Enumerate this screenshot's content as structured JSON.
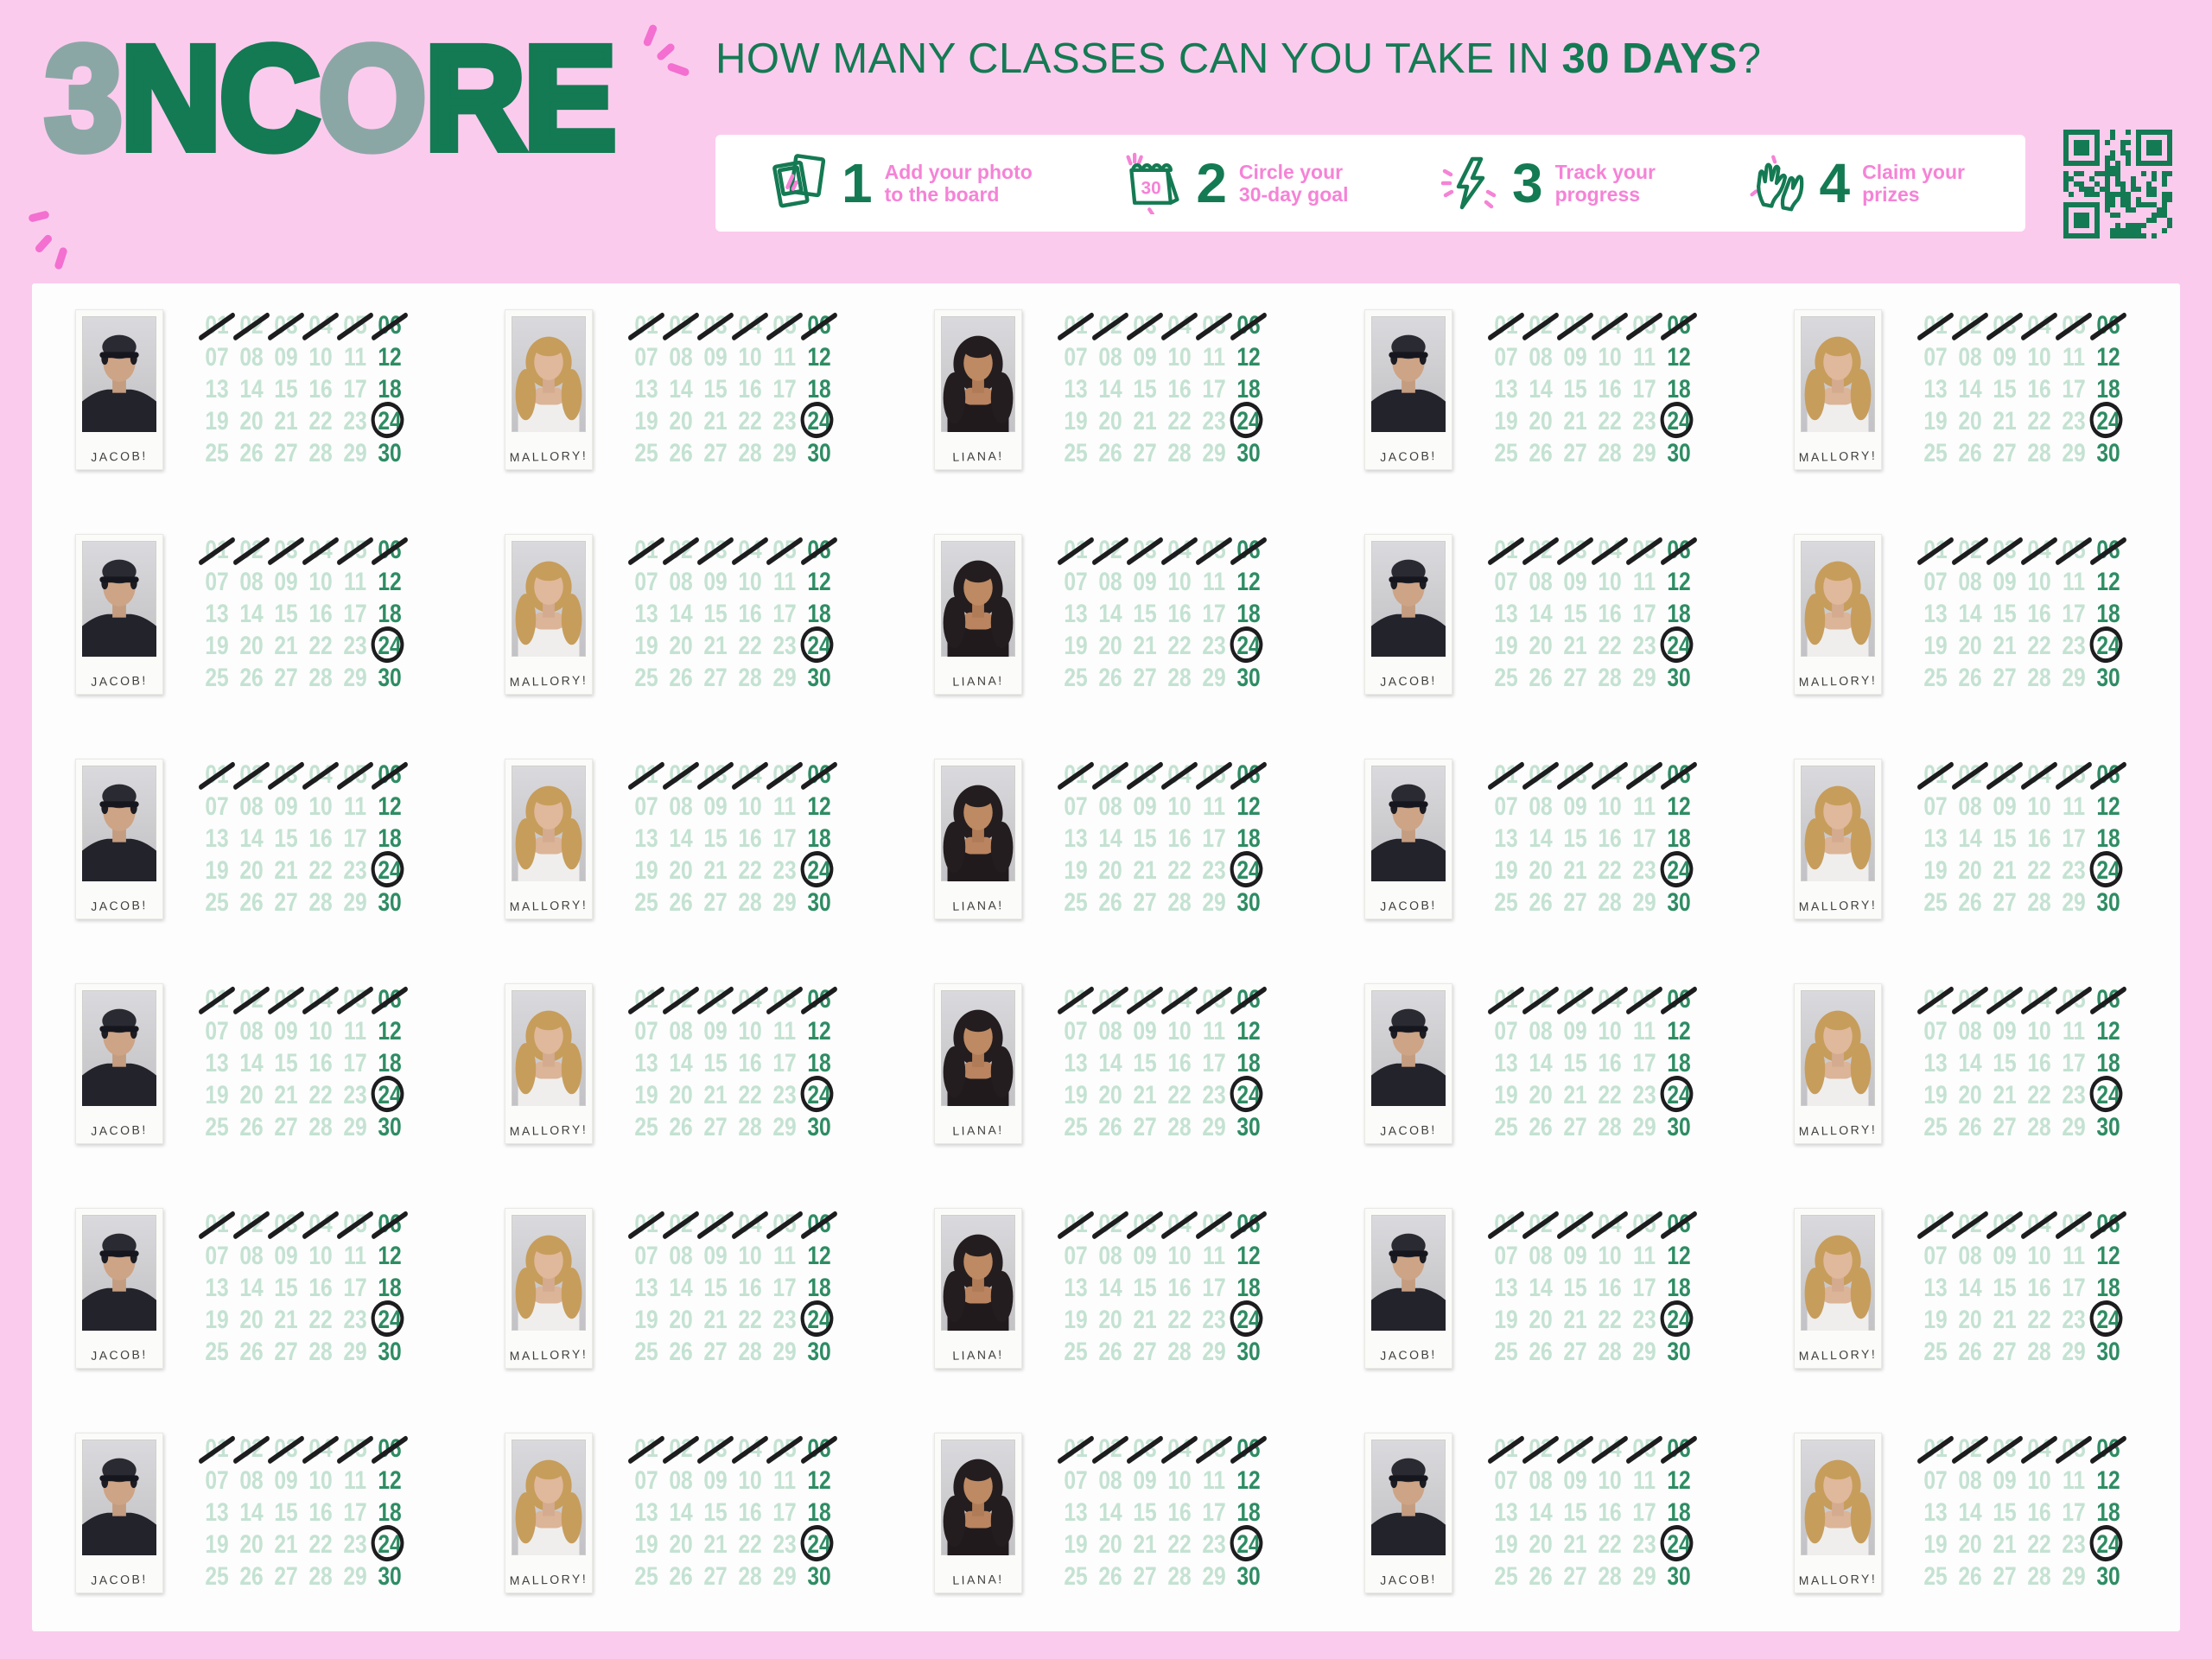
{
  "logo": {
    "word": "3NCORE",
    "letters": [
      {
        "ch": "3",
        "tone": "sage"
      },
      {
        "ch": "N",
        "tone": "green"
      },
      {
        "ch": "C",
        "tone": "green"
      },
      {
        "ch": "O",
        "tone": "sage"
      },
      {
        "ch": "R",
        "tone": "green"
      },
      {
        "ch": "E",
        "tone": "green"
      }
    ]
  },
  "header": {
    "title_prefix": "HOW MANY CLASSES CAN YOU TAKE IN ",
    "title_bold": "30 DAYS",
    "title_suffix": "?"
  },
  "steps": [
    {
      "number": "1",
      "icon": "photo-icon",
      "lines": [
        "Add your photo",
        "to the board"
      ]
    },
    {
      "number": "2",
      "icon": "calendar-icon",
      "icon_label": "30",
      "lines": [
        "Circle your",
        "30-day goal"
      ]
    },
    {
      "number": "3",
      "icon": "lightning-icon",
      "lines": [
        "Track your",
        "progress"
      ]
    },
    {
      "number": "4",
      "icon": "hands-icon",
      "lines": [
        "Claim your",
        "prizes"
      ]
    }
  ],
  "qr": {
    "name": "qr-code",
    "modules": 21
  },
  "board": {
    "people": {
      "jacob": {
        "name": "JACOB!"
      },
      "mallory": {
        "name": "MALLORY!"
      },
      "liana": {
        "name": "LIANA!"
      }
    },
    "column_order": [
      "jacob",
      "mallory",
      "liana",
      "jacob",
      "mallory"
    ],
    "row_count": 6,
    "calendar": {
      "day_count": 30,
      "grid_columns": 6,
      "day_labels": [
        "01",
        "02",
        "03",
        "04",
        "05",
        "06",
        "07",
        "08",
        "09",
        "10",
        "11",
        "12",
        "13",
        "14",
        "15",
        "16",
        "17",
        "18",
        "19",
        "20",
        "21",
        "22",
        "23",
        "24",
        "25",
        "26",
        "27",
        "28",
        "29",
        "30"
      ],
      "struck_days": [
        1,
        2,
        3,
        4,
        5,
        6
      ],
      "circled_day": 24,
      "milestone_days": [
        6,
        12,
        18,
        24,
        30
      ]
    }
  },
  "colors": {
    "background_pink": "#fbcbed",
    "sparkle_pink": "#f36fd0",
    "step_text_pink": "#f583d6",
    "brand_green": "#147a53",
    "milestone_green": "#2e8c63",
    "faded_green": "#c4e2d2",
    "sage": "#8ba7a5",
    "mark_black": "#1d1d1f",
    "board_white": "#fdfdfd"
  }
}
